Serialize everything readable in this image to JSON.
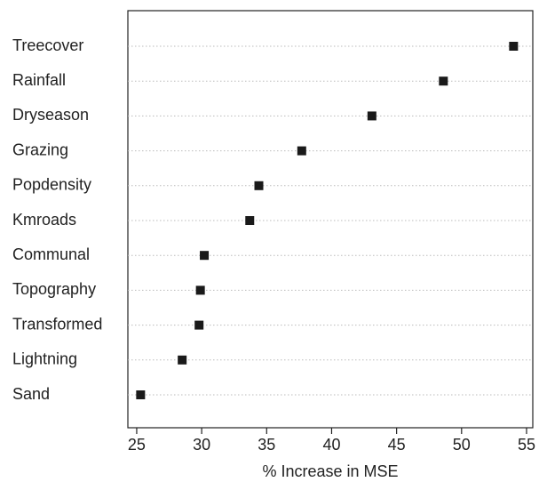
{
  "chart_data": {
    "type": "dot",
    "categories": [
      "Treecover",
      "Rainfall",
      "Dryseason",
      "Grazing",
      "Popdensity",
      "Kmroads",
      "Communal",
      "Topography",
      "Transformed",
      "Lightning",
      "Sand"
    ],
    "values": [
      54.0,
      48.6,
      43.1,
      37.7,
      34.4,
      33.7,
      30.2,
      29.9,
      29.8,
      28.5,
      25.3
    ],
    "color": "#1a1a1a",
    "x_label": "% Increase in MSE",
    "xlim": [
      24.32,
      55.48
    ],
    "xticks": [
      25,
      30,
      35,
      40,
      45,
      50,
      55
    ]
  }
}
